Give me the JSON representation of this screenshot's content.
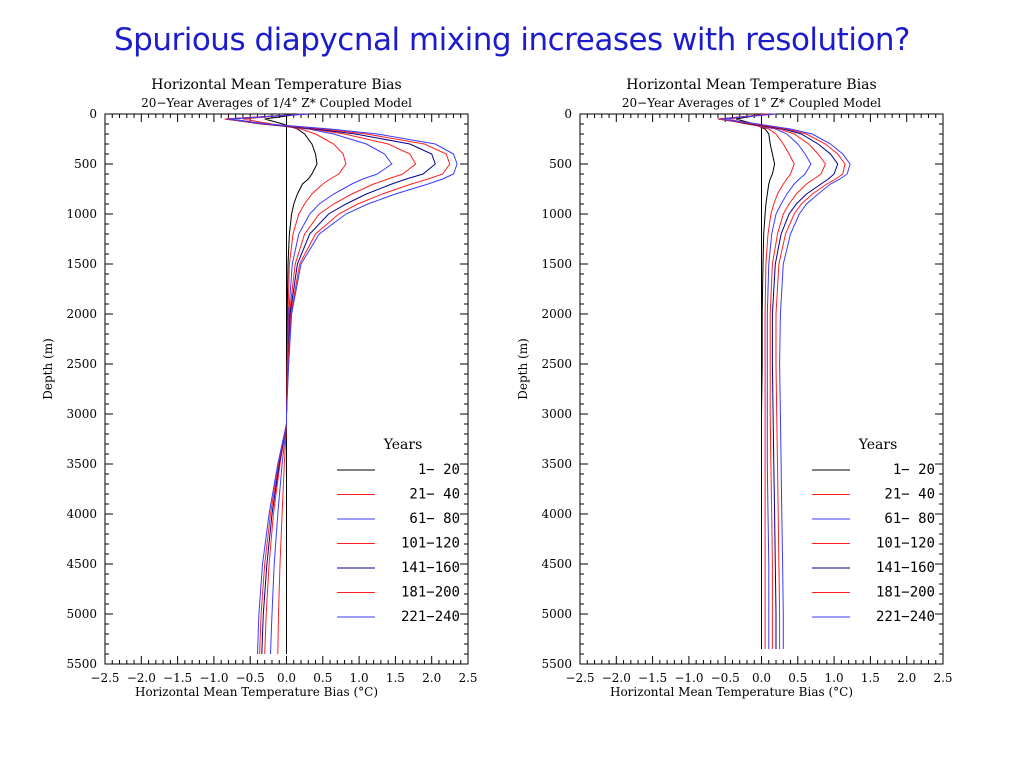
{
  "slide": {
    "title": "Spurious diapycnal mixing increases with resolution?"
  },
  "chart_data": [
    {
      "type": "line",
      "title": "Horizontal Mean Temperature Bias",
      "subtitle": "20−Year Averages of 1/4° Z* Coupled Model",
      "xlabel": "Horizontal Mean Temperature Bias (°C)",
      "ylabel": "Depth (m)",
      "xlim": [
        -2.5,
        2.5
      ],
      "ylim": [
        5500,
        0
      ],
      "y_inverted": true,
      "x_ticks": [
        "−2.5",
        "−2.0",
        "−1.5",
        "−1.0",
        "−0.5",
        "0.0",
        "0.5",
        "1.0",
        "1.5",
        "2.0",
        "2.5"
      ],
      "y_ticks": [
        "0",
        "500",
        "1000",
        "1500",
        "2000",
        "2500",
        "3000",
        "3500",
        "4000",
        "4500",
        "5000",
        "5500"
      ],
      "legend_title": "Years",
      "legend_position": "bottom-right",
      "depths": [
        0,
        50,
        100,
        150,
        200,
        300,
        400,
        500,
        600,
        650,
        700,
        800,
        900,
        1000,
        1200,
        1500,
        2000,
        2500,
        3000,
        3100,
        3500,
        4000,
        4500,
        5000,
        5400
      ],
      "series": [
        {
          "name": "1− 20",
          "color": "#000000",
          "values": [
            0.2,
            -0.3,
            -0.05,
            0.15,
            0.25,
            0.35,
            0.4,
            0.42,
            0.35,
            0.3,
            0.22,
            0.15,
            0.1,
            0.07,
            0.04,
            0.02,
            0.01,
            0.01,
            0.0,
            0.0,
            0.0,
            0.0,
            0.0,
            0.0,
            0.0
          ]
        },
        {
          "name": "21− 40",
          "color": "#ff2020",
          "values": [
            0.2,
            -0.6,
            -0.2,
            0.2,
            0.4,
            0.65,
            0.78,
            0.82,
            0.72,
            0.6,
            0.5,
            0.35,
            0.25,
            0.17,
            0.09,
            0.04,
            0.02,
            0.01,
            0.0,
            0.0,
            -0.03,
            -0.06,
            -0.09,
            -0.11,
            -0.12
          ]
        },
        {
          "name": "61− 80",
          "color": "#3a3aff",
          "values": [
            0.25,
            -0.75,
            -0.3,
            0.3,
            0.65,
            1.1,
            1.35,
            1.45,
            1.25,
            1.05,
            0.9,
            0.65,
            0.45,
            0.32,
            0.17,
            0.08,
            0.03,
            0.02,
            0.0,
            0.0,
            -0.06,
            -0.12,
            -0.17,
            -0.2,
            -0.22
          ]
        },
        {
          "name": "101−120",
          "color": "#ff2020",
          "values": [
            0.25,
            -0.8,
            -0.3,
            0.35,
            0.8,
            1.4,
            1.7,
            1.78,
            1.6,
            1.4,
            1.2,
            0.9,
            0.65,
            0.45,
            0.25,
            0.12,
            0.04,
            0.02,
            0.0,
            0.0,
            -0.09,
            -0.18,
            -0.24,
            -0.28,
            -0.3
          ]
        },
        {
          "name": "141−160",
          "color": "#000090",
          "values": [
            0.3,
            -0.85,
            -0.35,
            0.4,
            0.95,
            1.7,
            2.0,
            2.05,
            1.88,
            1.65,
            1.45,
            1.1,
            0.82,
            0.58,
            0.32,
            0.15,
            0.05,
            0.02,
            0.0,
            0.0,
            -0.1,
            -0.2,
            -0.27,
            -0.32,
            -0.34
          ]
        },
        {
          "name": "181−200",
          "color": "#ff2020",
          "values": [
            0.3,
            -0.85,
            -0.3,
            0.5,
            1.1,
            1.9,
            2.2,
            2.25,
            2.15,
            1.95,
            1.72,
            1.32,
            0.98,
            0.72,
            0.4,
            0.18,
            0.06,
            0.02,
            0.0,
            0.0,
            -0.11,
            -0.22,
            -0.3,
            -0.35,
            -0.37
          ]
        },
        {
          "name": "221−240",
          "color": "#3a3aff",
          "values": [
            0.3,
            -0.8,
            -0.25,
            0.6,
            1.25,
            2.05,
            2.3,
            2.35,
            2.3,
            2.15,
            1.95,
            1.5,
            1.12,
            0.82,
            0.45,
            0.2,
            0.07,
            0.03,
            0.0,
            0.0,
            -0.12,
            -0.24,
            -0.33,
            -0.38,
            -0.4
          ]
        }
      ]
    },
    {
      "type": "line",
      "title": "Horizontal Mean Temperature Bias",
      "subtitle": "20−Year Averages of 1° Z* Coupled Model",
      "xlabel": "Horizontal Mean Temperature Bias (°C)",
      "ylabel": "Depth (m)",
      "xlim": [
        -2.5,
        2.5
      ],
      "ylim": [
        5500,
        0
      ],
      "y_inverted": true,
      "x_ticks": [
        "−2.5",
        "−2.0",
        "−1.5",
        "−1.0",
        "−0.5",
        "0.0",
        "0.5",
        "1.0",
        "1.5",
        "2.0",
        "2.5"
      ],
      "y_ticks": [
        "0",
        "500",
        "1000",
        "1500",
        "2000",
        "2500",
        "3000",
        "3500",
        "4000",
        "4500",
        "5000",
        "5500"
      ],
      "legend_title": "Years",
      "legend_position": "bottom-right",
      "depths": [
        0,
        50,
        100,
        150,
        200,
        300,
        400,
        500,
        600,
        650,
        700,
        800,
        900,
        1000,
        1200,
        1500,
        2000,
        2500,
        3000,
        3500,
        4000,
        4500,
        5000,
        5350
      ],
      "series": [
        {
          "name": "1− 20",
          "color": "#000000",
          "values": [
            0.05,
            -0.35,
            -0.1,
            0.05,
            0.1,
            0.12,
            0.15,
            0.18,
            0.15,
            0.12,
            0.1,
            0.08,
            0.06,
            0.05,
            0.03,
            0.02,
            0.01,
            0.01,
            0.0,
            0.0,
            0.0,
            0.0,
            0.0,
            0.0
          ]
        },
        {
          "name": "21− 40",
          "color": "#ff2020",
          "values": [
            0.05,
            -0.45,
            -0.15,
            0.1,
            0.2,
            0.3,
            0.38,
            0.45,
            0.4,
            0.35,
            0.3,
            0.22,
            0.17,
            0.13,
            0.09,
            0.06,
            0.05,
            0.05,
            0.05,
            0.05,
            0.05,
            0.05,
            0.05,
            0.05
          ]
        },
        {
          "name": "61− 80",
          "color": "#3a3aff",
          "values": [
            0.1,
            -0.5,
            -0.2,
            0.2,
            0.35,
            0.5,
            0.6,
            0.68,
            0.6,
            0.52,
            0.45,
            0.35,
            0.27,
            0.2,
            0.14,
            0.1,
            0.08,
            0.08,
            0.08,
            0.08,
            0.09,
            0.1,
            0.1,
            0.1
          ]
        },
        {
          "name": "101−120",
          "color": "#ff2020",
          "values": [
            0.1,
            -0.55,
            -0.2,
            0.25,
            0.45,
            0.65,
            0.78,
            0.88,
            0.82,
            0.72,
            0.62,
            0.48,
            0.38,
            0.3,
            0.22,
            0.15,
            0.12,
            0.12,
            0.12,
            0.13,
            0.14,
            0.15,
            0.15,
            0.15
          ]
        },
        {
          "name": "141−160",
          "color": "#000090",
          "values": [
            0.15,
            -0.6,
            -0.15,
            0.3,
            0.55,
            0.78,
            0.95,
            1.05,
            1.0,
            0.92,
            0.82,
            0.62,
            0.48,
            0.38,
            0.27,
            0.19,
            0.15,
            0.15,
            0.16,
            0.17,
            0.18,
            0.19,
            0.2,
            0.2
          ]
        },
        {
          "name": "181−200",
          "color": "#ff2020",
          "values": [
            0.15,
            -0.6,
            -0.1,
            0.35,
            0.62,
            0.88,
            1.05,
            1.15,
            1.12,
            1.02,
            0.9,
            0.7,
            0.55,
            0.45,
            0.33,
            0.24,
            0.2,
            0.2,
            0.21,
            0.22,
            0.23,
            0.24,
            0.25,
            0.25
          ]
        },
        {
          "name": "221−240",
          "color": "#3a3aff",
          "values": [
            0.2,
            -0.55,
            -0.05,
            0.4,
            0.7,
            0.95,
            1.12,
            1.22,
            1.18,
            1.08,
            0.95,
            0.78,
            0.62,
            0.52,
            0.4,
            0.3,
            0.26,
            0.25,
            0.26,
            0.27,
            0.28,
            0.29,
            0.3,
            0.3
          ]
        }
      ]
    }
  ]
}
